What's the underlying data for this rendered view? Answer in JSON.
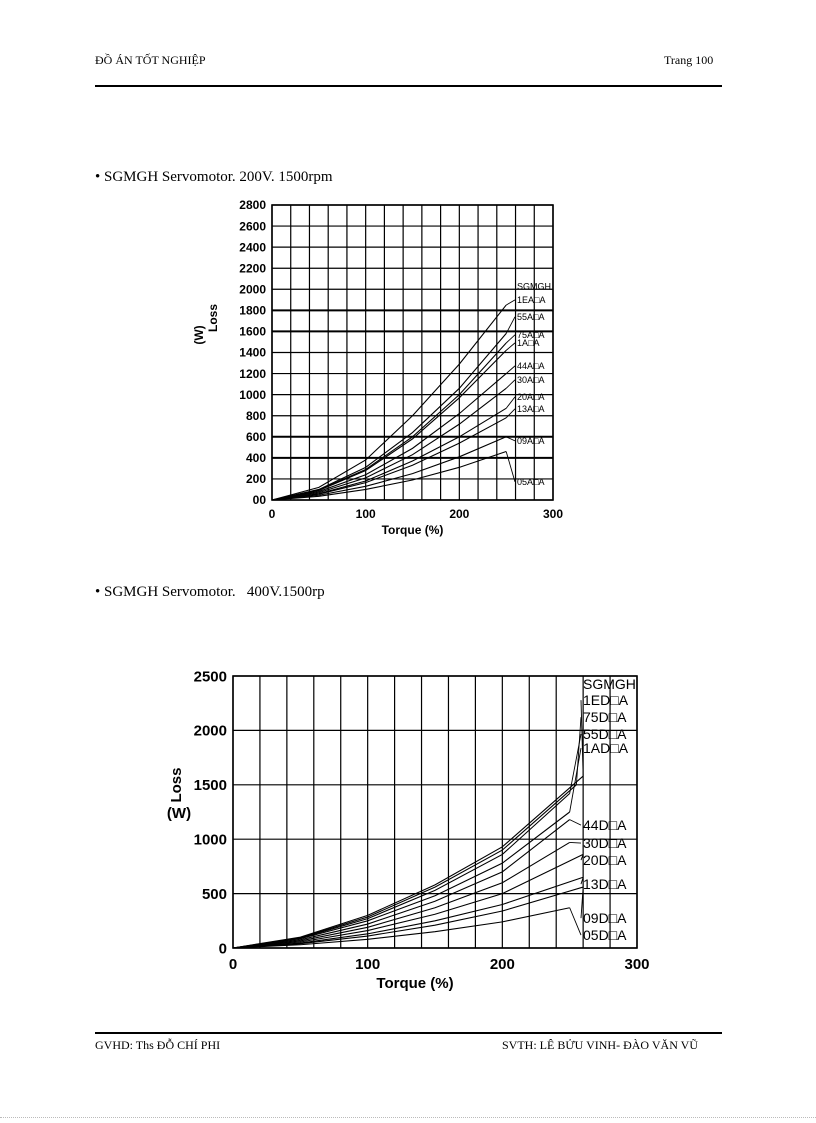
{
  "header": {
    "left": "ĐỒ ÁN TỐT NGHIỆP",
    "right": "Trang 100"
  },
  "footer": {
    "left": "GVHD:  Ths ĐỖ CHÍ PHI",
    "right": "SVTH: LÊ BỬU VINH- ĐÀO VĂN VŨ"
  },
  "captions": [
    "• SGMGH Servomotor. 200V. 1500rpm",
    "• SGMGH Servomotor.   400V.1500rp"
  ],
  "chart_data": [
    {
      "type": "line",
      "title": "SGMGH Servomotor. 200V. 1500rpm",
      "xlabel": "Torque (%)",
      "ylabel": "Loss (W)",
      "xlim": [
        0,
        300
      ],
      "ylim": [
        0,
        2800
      ],
      "x_ticks": [
        "0",
        "100",
        "200",
        "300"
      ],
      "y_ticks": [
        "00",
        "200",
        "400",
        "600",
        "800",
        "1000",
        "1200",
        "1400",
        "1600",
        "1800",
        "2000",
        "2200",
        "2400",
        "2600",
        "2800"
      ],
      "legend_title": "SGMGH",
      "series": [
        {
          "name": "1EA□A",
          "x": [
            0,
            50,
            100,
            150,
            200,
            250
          ],
          "y": [
            0,
            120,
            380,
            800,
            1290,
            1850
          ]
        },
        {
          "name": "55A□A",
          "x": [
            0,
            50,
            100,
            150,
            200,
            250
          ],
          "y": [
            0,
            100,
            310,
            640,
            1060,
            1580
          ]
        },
        {
          "name": "75A□A",
          "x": [
            0,
            50,
            100,
            150,
            200,
            250
          ],
          "y": [
            0,
            95,
            290,
            600,
            1000,
            1490
          ]
        },
        {
          "name": "1A□A",
          "x": [
            0,
            50,
            100,
            150,
            200,
            250
          ],
          "y": [
            0,
            90,
            280,
            580,
            970,
            1420
          ]
        },
        {
          "name": "44A□A",
          "x": [
            0,
            50,
            100,
            150,
            200,
            250
          ],
          "y": [
            0,
            80,
            240,
            490,
            820,
            1200
          ]
        },
        {
          "name": "30A□A",
          "x": [
            0,
            50,
            100,
            150,
            200,
            250
          ],
          "y": [
            0,
            70,
            210,
            430,
            720,
            1060
          ]
        },
        {
          "name": "20A□A",
          "x": [
            0,
            50,
            100,
            150,
            200,
            250
          ],
          "y": [
            0,
            60,
            180,
            370,
            600,
            870
          ]
        },
        {
          "name": "13A□A",
          "x": [
            0,
            50,
            100,
            150,
            200,
            250
          ],
          "y": [
            0,
            55,
            165,
            330,
            540,
            780
          ]
        },
        {
          "name": "09A□A",
          "x": [
            0,
            50,
            100,
            150,
            200,
            250
          ],
          "y": [
            0,
            45,
            130,
            250,
            410,
            600
          ]
        },
        {
          "name": "05A□A",
          "x": [
            0,
            50,
            100,
            150,
            200,
            250
          ],
          "y": [
            0,
            35,
            100,
            190,
            310,
            460
          ]
        }
      ]
    },
    {
      "type": "line",
      "title": "SGMGH Servomotor. 400V.1500rp",
      "xlabel": "Torque (%)",
      "ylabel": "Loss (W)",
      "xlim": [
        0,
        300
      ],
      "ylim": [
        0,
        2500
      ],
      "x_ticks": [
        "0",
        "100",
        "200",
        "300"
      ],
      "y_ticks": [
        "0",
        "500",
        "1000",
        "1500",
        "2000",
        "2500"
      ],
      "legend_title": "SGMGH",
      "series": [
        {
          "name": "1ED□A",
          "x": [
            0,
            50,
            100,
            150,
            200,
            260
          ],
          "y": [
            0,
            100,
            300,
            580,
            930,
            1580
          ]
        },
        {
          "name": "75D□A",
          "x": [
            0,
            50,
            100,
            150,
            200,
            255
          ],
          "y": [
            0,
            95,
            285,
            560,
            900,
            1500
          ]
        },
        {
          "name": "55D□A",
          "x": [
            0,
            50,
            100,
            150,
            200,
            250
          ],
          "y": [
            0,
            90,
            270,
            530,
            860,
            1420
          ]
        },
        {
          "name": "1AD□A",
          "x": [
            0,
            50,
            100,
            150,
            200,
            250
          ],
          "y": [
            0,
            85,
            250,
            480,
            780,
            1250
          ]
        },
        {
          "name": "44D□A",
          "x": [
            0,
            50,
            100,
            150,
            200,
            250
          ],
          "y": [
            0,
            75,
            220,
            430,
            700,
            1180
          ]
        },
        {
          "name": "30D□A",
          "x": [
            0,
            50,
            100,
            150,
            200,
            250
          ],
          "y": [
            0,
            65,
            190,
            370,
            600,
            970
          ]
        },
        {
          "name": "20D□A",
          "x": [
            0,
            50,
            100,
            150,
            200,
            260
          ],
          "y": [
            0,
            55,
            160,
            310,
            500,
            860
          ]
        },
        {
          "name": "13D□A",
          "x": [
            0,
            50,
            100,
            150,
            200,
            260
          ],
          "y": [
            0,
            45,
            130,
            250,
            400,
            650
          ]
        },
        {
          "name": "09D□A",
          "x": [
            0,
            50,
            100,
            150,
            200,
            260
          ],
          "y": [
            0,
            40,
            110,
            210,
            340,
            560
          ]
        },
        {
          "name": "05D□A",
          "x": [
            0,
            50,
            100,
            150,
            200,
            250
          ],
          "y": [
            0,
            30,
            80,
            150,
            240,
            370
          ]
        }
      ]
    }
  ]
}
